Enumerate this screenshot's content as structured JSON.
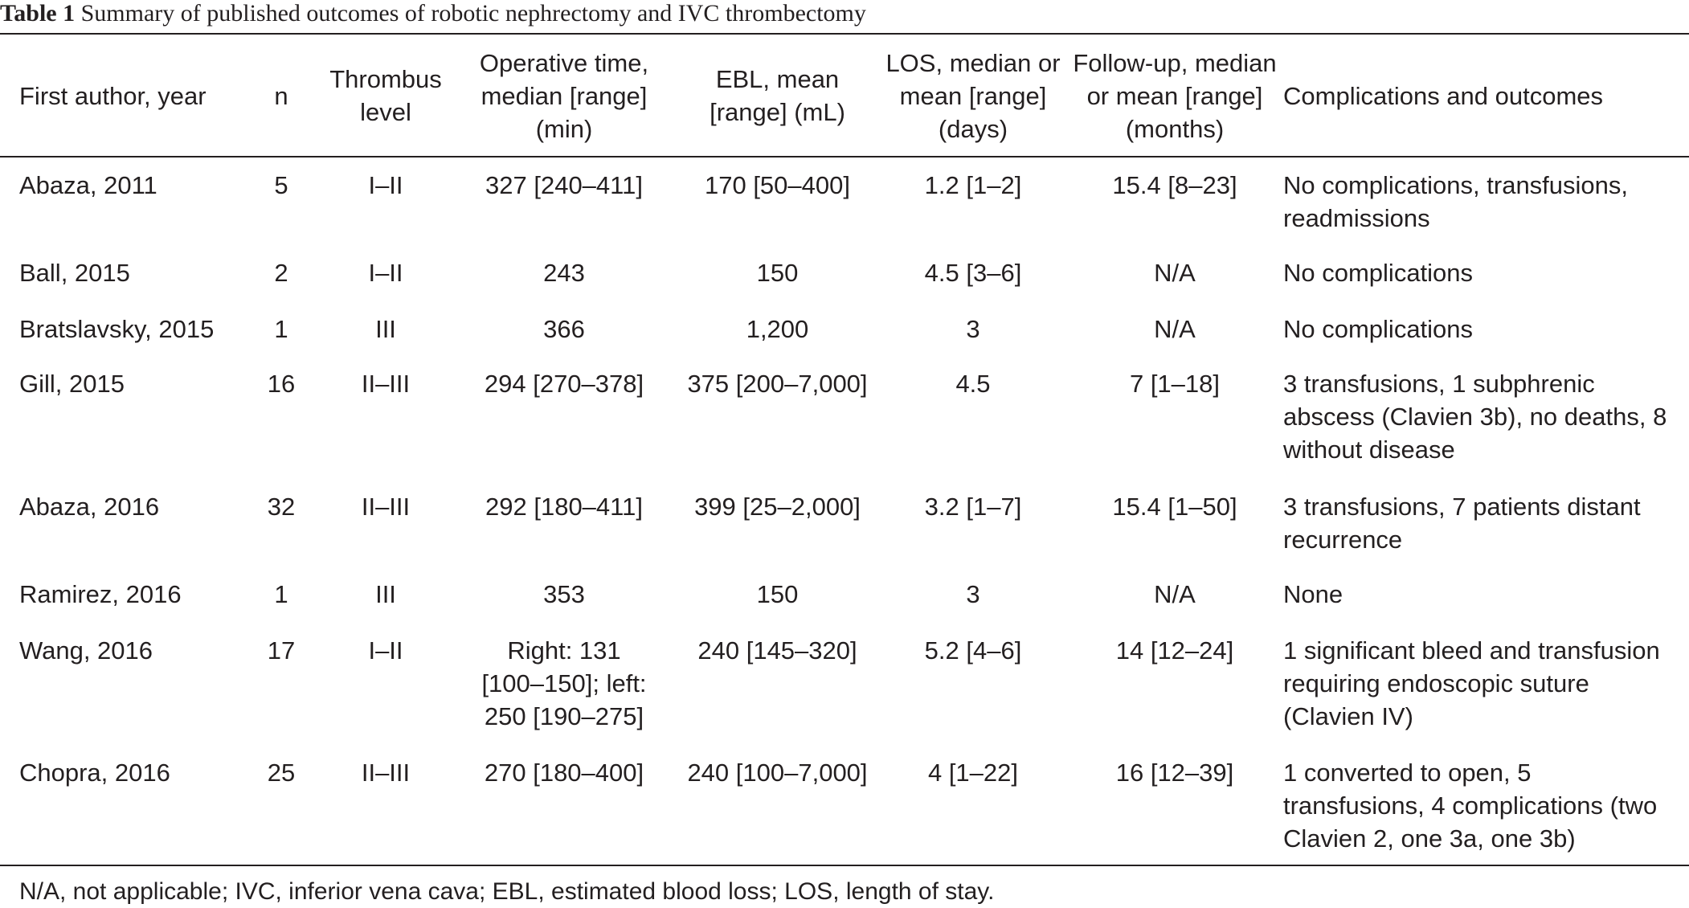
{
  "caption": {
    "label": "Table 1",
    "title": "Summary of published outcomes of robotic nephrectomy and IVC thrombectomy"
  },
  "columns": [
    "First author, year",
    "n",
    "Thrombus level",
    "Operative time, median [range] (min)",
    "EBL, mean [range] (mL)",
    "LOS, median or mean [range] (days)",
    "Follow-up, median or mean [range] (months)",
    "Complications and outcomes"
  ],
  "rows": [
    [
      "Abaza, 2011",
      "5",
      "I–II",
      "327 [240–411]",
      "170 [50–400]",
      "1.2 [1–2]",
      "15.4 [8–23]",
      "No complications, transfusions, readmissions"
    ],
    [
      "Ball, 2015",
      "2",
      "I–II",
      "243",
      "150",
      "4.5 [3–6]",
      "N/A",
      "No complications"
    ],
    [
      "Bratslavsky, 2015",
      "1",
      "III",
      "366",
      "1,200",
      "3",
      "N/A",
      "No complications"
    ],
    [
      "Gill, 2015",
      "16",
      "II–III",
      "294 [270–378]",
      "375 [200–7,000]",
      "4.5",
      "7 [1–18]",
      "3 transfusions, 1 subphrenic abscess (Clavien 3b), no deaths, 8 without disease"
    ],
    [
      "Abaza, 2016",
      "32",
      "II–III",
      "292 [180–411]",
      "399 [25–2,000]",
      "3.2 [1–7]",
      "15.4 [1–50]",
      "3 transfusions, 7 patients distant recurrence"
    ],
    [
      "Ramirez, 2016",
      "1",
      "III",
      "353",
      "150",
      "3",
      "N/A",
      "None"
    ],
    [
      "Wang, 2016",
      "17",
      "I–II",
      "Right: 131 [100–150]; left: 250 [190–275]",
      "240 [145–320]",
      "5.2 [4–6]",
      "14 [12–24]",
      "1 significant bleed and transfusion requiring endoscopic suture (Clavien IV)"
    ],
    [
      "Chopra, 2016",
      "25",
      "II–III",
      "270 [180–400]",
      "240 [100–7,000]",
      "4 [1–22]",
      "16 [12–39]",
      "1 converted to open, 5 transfusions, 4 complications (two Clavien 2, one 3a, one 3b)"
    ]
  ],
  "footnote": "N/A, not applicable; IVC, inferior vena cava; EBL, estimated blood loss; LOS, length of stay."
}
